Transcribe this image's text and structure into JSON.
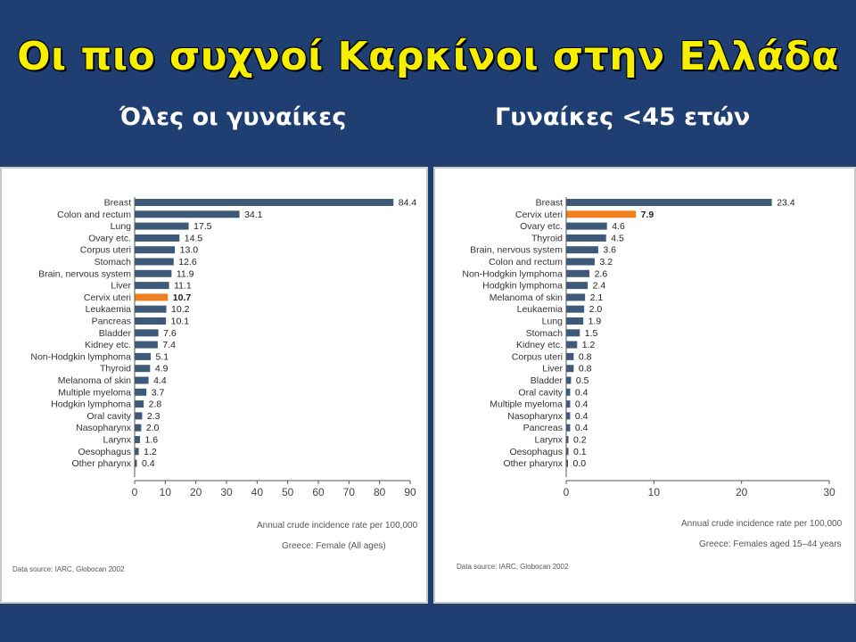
{
  "title": "Οι πιο συχνοί Καρκίνοι στην Ελλάδα",
  "subtitles": {
    "left": "Όλες οι γυναίκες",
    "right": "Γυναίκες <45 ετών"
  },
  "colors": {
    "bar": "#3f5a78",
    "highlight": "#f07f1f",
    "background": "#1f3f73",
    "title": "#f7ef00"
  },
  "chart_data": [
    {
      "type": "bar",
      "orientation": "horizontal",
      "categories": [
        "Breast",
        "Colon and rectum",
        "Lung",
        "Ovary etc.",
        "Corpus uteri",
        "Stomach",
        "Brain, nervous system",
        "Liver",
        "Cervix uteri",
        "Leukaemia",
        "Pancreas",
        "Bladder",
        "Kidney etc.",
        "Non-Hodgkin lymphoma",
        "Thyroid",
        "Melanoma of skin",
        "Multiple myeloma",
        "Hodgkin lymphoma",
        "Oral cavity",
        "Nasopharynx",
        "Larynx",
        "Oesophagus",
        "Other pharynx"
      ],
      "values": [
        84.4,
        34.1,
        17.5,
        14.5,
        13.0,
        12.6,
        11.9,
        11.1,
        10.7,
        10.2,
        10.1,
        7.6,
        7.4,
        5.1,
        4.9,
        4.4,
        3.7,
        2.8,
        2.3,
        2.0,
        1.6,
        1.2,
        0.4
      ],
      "value_labels": [
        "84.4",
        "34.1",
        "17.5",
        "14.5",
        "13.0",
        "12.6",
        "11.9",
        "11.1",
        "10.7",
        "10.2",
        "10.1",
        "7.6",
        "7.4",
        "5.1",
        "4.9",
        "4.4",
        "3.7",
        "2.8",
        "2.3",
        "2.0",
        "1.6",
        "1.2",
        "0.4"
      ],
      "highlight": "Cervix uteri",
      "xlabel": "Annual crude incidence rate per 100,000",
      "subtitle": "Greece: Female (All ages)",
      "source": "Data source: IARC, Globocan 2002",
      "xlim": [
        0,
        90
      ],
      "xticks": [
        0,
        10,
        20,
        30,
        40,
        50,
        60,
        70,
        80,
        90
      ]
    },
    {
      "type": "bar",
      "orientation": "horizontal",
      "categories": [
        "Breast",
        "Cervix uteri",
        "Ovary etc.",
        "Thyroid",
        "Brain, nervous system",
        "Colon and rectum",
        "Non-Hodgkin lymphoma",
        "Hodgkin lymphoma",
        "Melanoma of skin",
        "Leukaemia",
        "Lung",
        "Stomach",
        "Kidney etc.",
        "Corpus uteri",
        "Liver",
        "Bladder",
        "Oral cavity",
        "Multiple myeloma",
        "Nasopharynx",
        "Pancreas",
        "Larynx",
        "Oesophagus",
        "Other pharynx"
      ],
      "values": [
        23.4,
        7.9,
        4.6,
        4.5,
        3.6,
        3.2,
        2.6,
        2.4,
        2.1,
        2.0,
        1.9,
        1.5,
        1.2,
        0.8,
        0.8,
        0.5,
        0.4,
        0.4,
        0.4,
        0.4,
        0.2,
        0.1,
        0.0
      ],
      "value_labels": [
        "23.4",
        "7.9",
        "4.6",
        "4.5",
        "3.6",
        "3.2",
        "2.6",
        "2.4",
        "2.1",
        "2.0",
        "1.9",
        "1.5",
        "1.2",
        "0.8",
        "0.8",
        "0.5",
        "0.4",
        "0.4",
        "0.4",
        "0.4",
        "0.2",
        "0.1",
        "0.0"
      ],
      "highlight": "Cervix uteri",
      "xlabel": "Annual crude incidence rate per 100,000",
      "subtitle": "Greece: Females aged 15–44 years",
      "source": "Data source: IARC, Globocan 2002",
      "xlim": [
        0,
        30
      ],
      "xticks": [
        0,
        10,
        20,
        30
      ]
    }
  ]
}
